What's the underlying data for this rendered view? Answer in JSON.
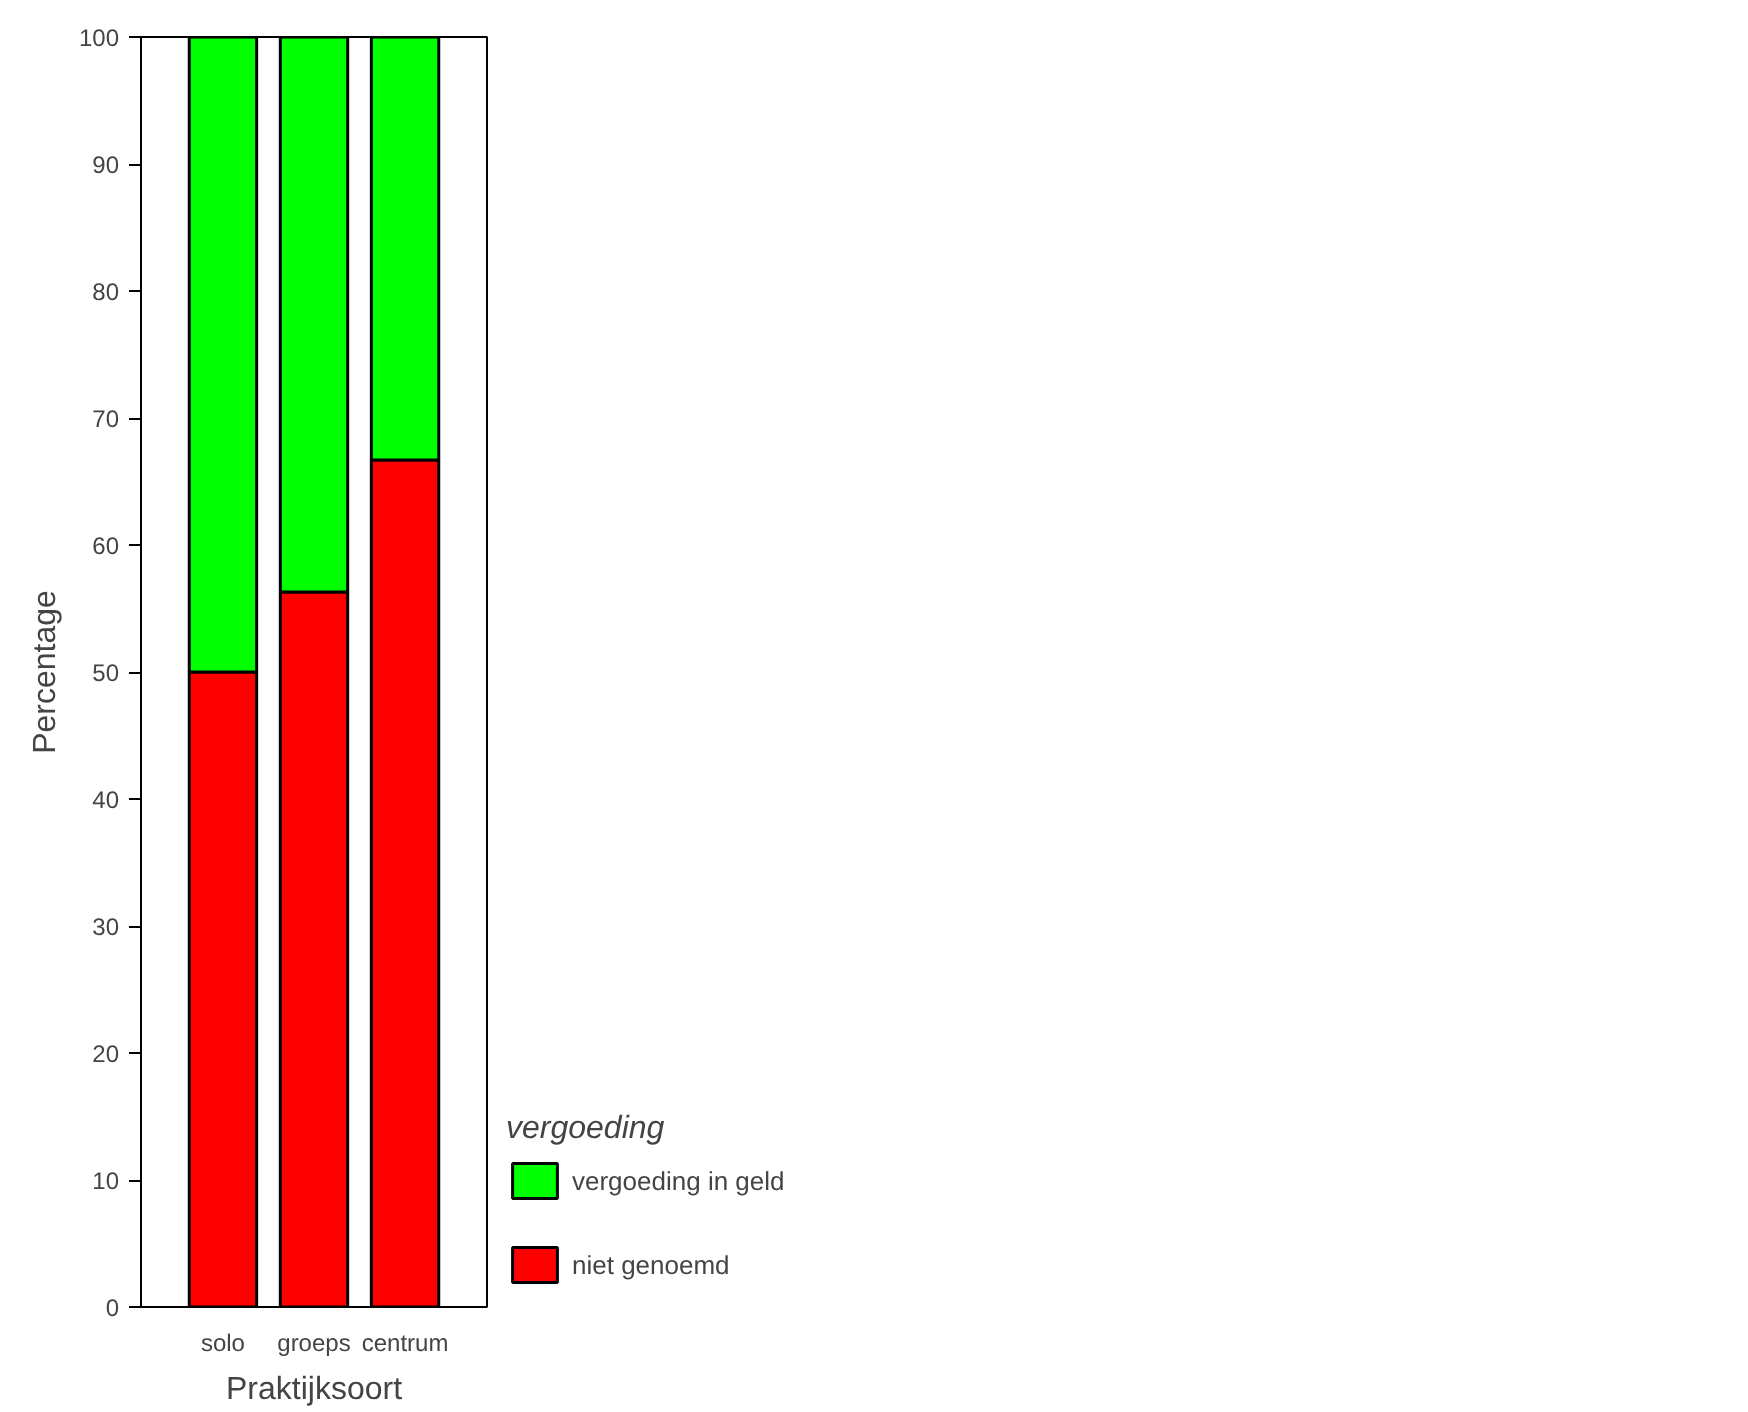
{
  "chart_data": {
    "type": "bar",
    "stacked": true,
    "categories": [
      "solo",
      "groeps",
      "centrum"
    ],
    "series": [
      {
        "name": "niet genoemd",
        "color": "#ff0000",
        "values": [
          50,
          56.3,
          66.7
        ]
      },
      {
        "name": "vergoeding in geld",
        "color": "#00ff00",
        "values": [
          50,
          43.7,
          33.3
        ]
      }
    ],
    "xlabel": "Praktijksoort",
    "ylabel": "Percentage",
    "legend_title": "vergoeding",
    "legend": "right",
    "ylim": [
      0,
      100
    ],
    "yticks": [
      0,
      10,
      20,
      30,
      40,
      50,
      60,
      70,
      80,
      90,
      100
    ],
    "grid": false
  }
}
